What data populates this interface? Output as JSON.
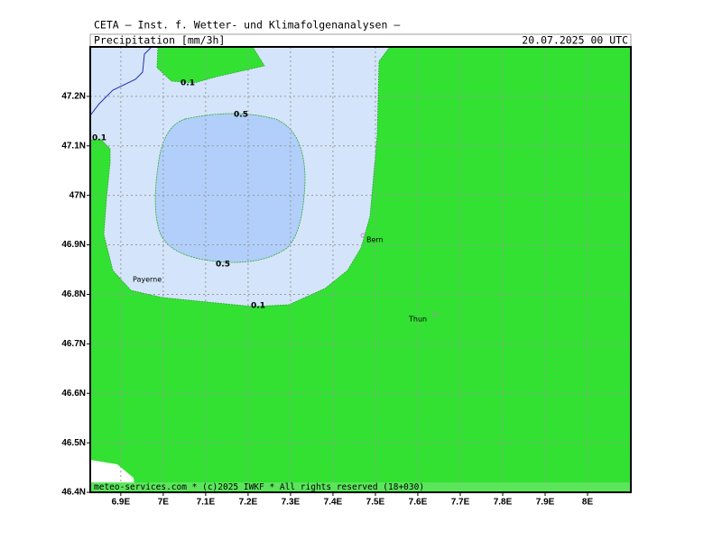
{
  "header": {
    "title": "CETA — Inst. f. Wetter- und Klimafolgenanalysen —",
    "product": "Precipitation [mm/3h]",
    "date": "20.07.2025 00 UTC"
  },
  "map": {
    "xlim": [
      6.828,
      8.102
    ],
    "ylim": [
      46.4,
      47.3
    ],
    "xticks": [
      {
        "value": 6.9,
        "label": "6.9E"
      },
      {
        "value": 7,
        "label": "7E"
      },
      {
        "value": 7.1,
        "label": "7.1E"
      },
      {
        "value": 7.2,
        "label": "7.2E"
      },
      {
        "value": 7.3,
        "label": "7.3E"
      },
      {
        "value": 7.4,
        "label": "7.4E"
      },
      {
        "value": 7.5,
        "label": "7.5E"
      },
      {
        "value": 7.6,
        "label": "7.6E"
      },
      {
        "value": 7.7,
        "label": "7.7E"
      },
      {
        "value": 7.8,
        "label": "7.8E"
      },
      {
        "value": 7.9,
        "label": "7.9E"
      },
      {
        "value": 8,
        "label": "8E"
      }
    ],
    "yticks": [
      {
        "value": 46.4,
        "label": "46.4N"
      },
      {
        "value": 46.5,
        "label": "46.5N"
      },
      {
        "value": 46.6,
        "label": "46.6N"
      },
      {
        "value": 46.7,
        "label": "46.7N"
      },
      {
        "value": 46.8,
        "label": "46.8N"
      },
      {
        "value": 46.9,
        "label": "46.9N"
      },
      {
        "value": 47,
        "label": "47N"
      },
      {
        "value": 47.1,
        "label": "47.1N"
      },
      {
        "value": 47.2,
        "label": "47.2N"
      }
    ],
    "contour_labels": [
      "0.1",
      "0.1",
      "0.5",
      "0.5",
      "0.1"
    ],
    "cities": [
      "Bern",
      "Payerne",
      "Thun"
    ]
  },
  "footer": "meteo-services.com * (c)2025 IWKF * All rights reserved (18+030)"
}
